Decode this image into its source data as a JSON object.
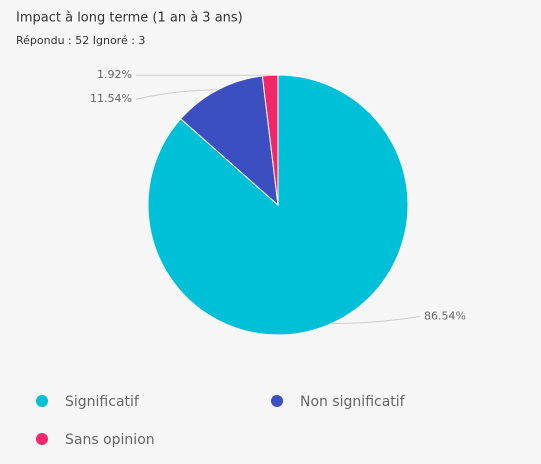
{
  "chart_data": {
    "type": "pie",
    "title": "Impact à long terme (1 an à 3 ans)",
    "subtitle": "Répondu : 52 Ignoré : 3",
    "categories": [
      "Significatif",
      "Non significatif",
      "Sans opinion"
    ],
    "values": [
      86.54,
      11.54,
      1.92
    ],
    "value_labels": [
      "86.54%",
      "11.54%",
      "1.92%"
    ],
    "colors": [
      "#00c0d8",
      "#3b4fc0",
      "#f0286a"
    ],
    "legend": "bottom"
  }
}
